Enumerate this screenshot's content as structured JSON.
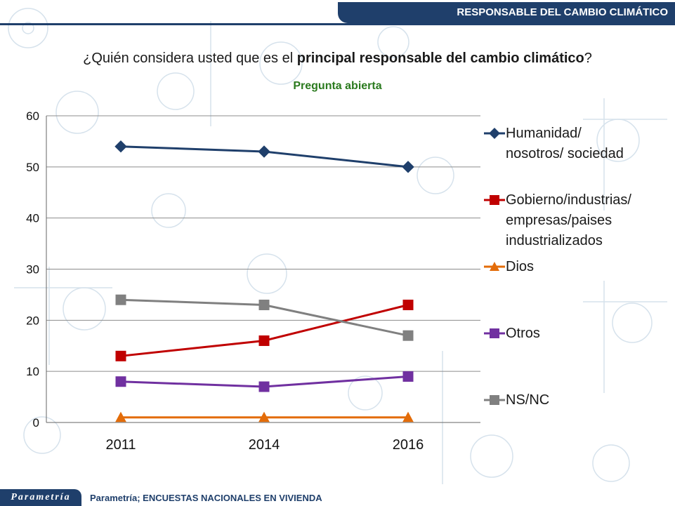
{
  "header": {
    "title": "RESPONSABLE DEL CAMBIO CLIMÁTICO"
  },
  "question": {
    "prefix": "¿Quién considera usted que es el ",
    "bold": "principal responsable del cambio climático",
    "suffix": "?"
  },
  "subtitle": "Pregunta abierta",
  "footer": {
    "logo": "Parametría",
    "source": "Parametría; ENCUESTAS NACIONALES EN VIVIENDA"
  },
  "chart_data": {
    "type": "line",
    "x": [
      "2011",
      "2014",
      "2016"
    ],
    "ylim": [
      0,
      60
    ],
    "yticks": [
      0,
      10,
      20,
      30,
      40,
      50,
      60
    ],
    "grid": true,
    "legend_position": "right",
    "series": [
      {
        "name": "Humanidad/ nosotros/ sociedad",
        "lines": [
          "Humanidad/",
          "nosotros/ sociedad"
        ],
        "values": [
          54,
          53,
          50
        ],
        "color": "#1f3f6b",
        "marker": "diamond"
      },
      {
        "name": "Gobierno/industrias/ empresas/paises industrializados",
        "lines": [
          "Gobierno/industrias/",
          "empresas/paises",
          "industrializados"
        ],
        "values": [
          13,
          16,
          23
        ],
        "color": "#c00000",
        "marker": "square"
      },
      {
        "name": "Dios",
        "lines": [
          "Dios"
        ],
        "values": [
          1,
          1,
          1
        ],
        "color": "#e36c09",
        "marker": "triangle"
      },
      {
        "name": "Otros",
        "lines": [
          "Otros"
        ],
        "values": [
          8,
          7,
          9
        ],
        "color": "#7030a0",
        "marker": "square"
      },
      {
        "name": "NS/NC",
        "lines": [
          "NS/NC"
        ],
        "values": [
          24,
          23,
          17
        ],
        "color": "#808080",
        "marker": "square"
      }
    ]
  }
}
